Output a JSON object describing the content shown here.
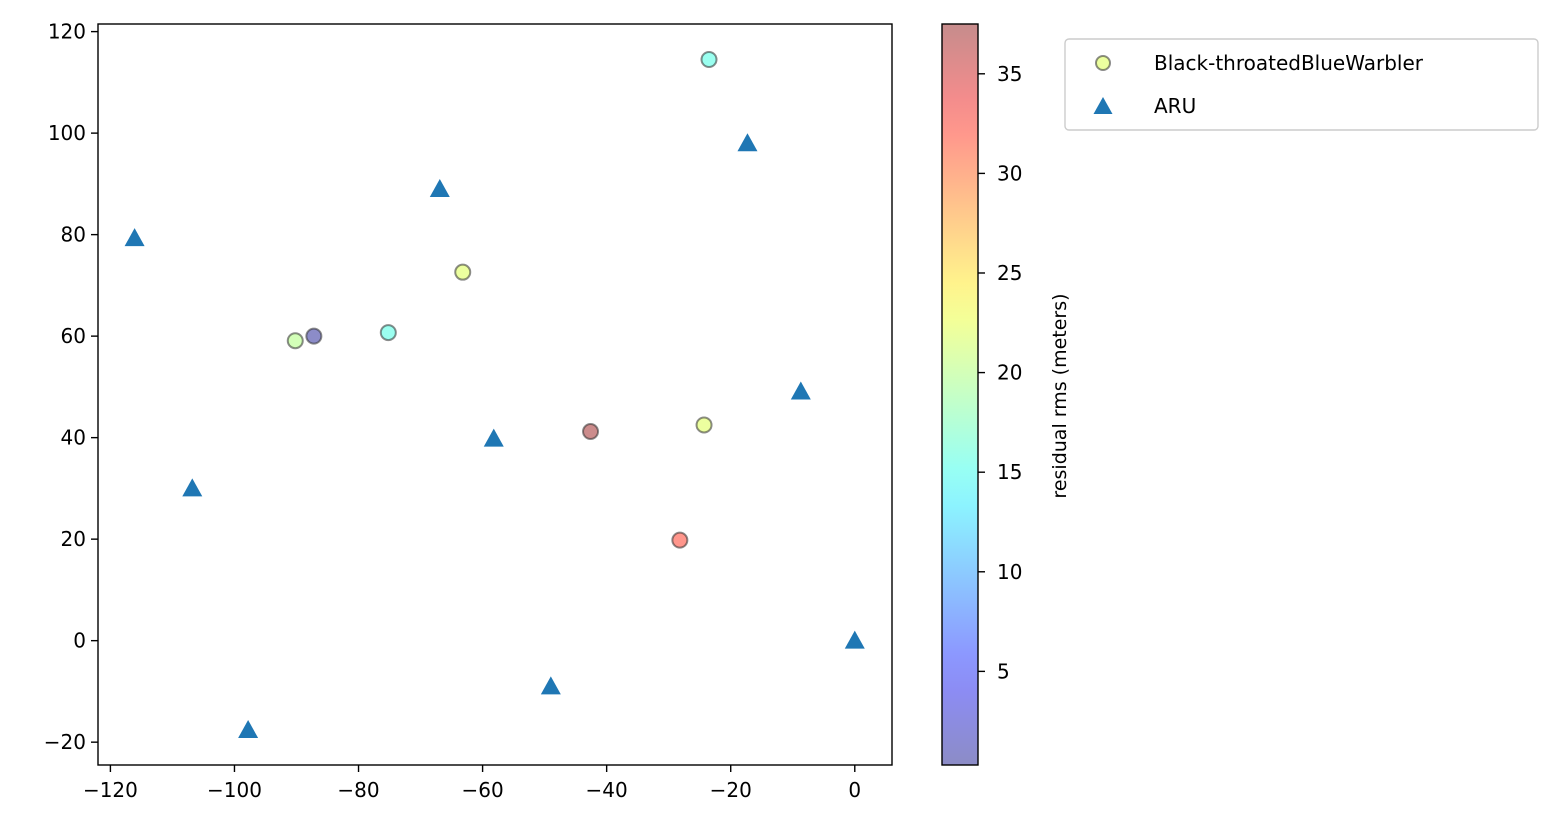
{
  "chart_data": {
    "type": "scatter",
    "xlim": [
      -122,
      6
    ],
    "ylim": [
      -24.5,
      121.5
    ],
    "x_ticks": [
      -120,
      -100,
      -80,
      -60,
      -40,
      -20,
      0
    ],
    "y_ticks": [
      -20,
      0,
      20,
      40,
      60,
      80,
      100,
      120
    ],
    "grid": false,
    "legend_position": "outside-top-right",
    "series": [
      {
        "name": "Black-throatedBlueWarbler",
        "marker": "circle",
        "alpha": 0.45,
        "edge_color": "#2d2d2d",
        "points": [
          {
            "x": -23.5,
            "y": 114.5,
            "c": 15.5
          },
          {
            "x": -63.2,
            "y": 72.6,
            "c": 22.0
          },
          {
            "x": -75.2,
            "y": 60.7,
            "c": 15.5
          },
          {
            "x": -90.2,
            "y": 59.1,
            "c": 20.0
          },
          {
            "x": -87.2,
            "y": 60.0,
            "c": 0.5
          },
          {
            "x": -42.6,
            "y": 41.2,
            "c": 37.0
          },
          {
            "x": -24.3,
            "y": 42.5,
            "c": 22.0
          },
          {
            "x": -28.2,
            "y": 19.8,
            "c": 32.0
          }
        ]
      },
      {
        "name": "ARU",
        "marker": "triangle",
        "color": "#1f77b4",
        "points": [
          {
            "x": -116.1,
            "y": 79.3
          },
          {
            "x": -106.8,
            "y": 30.0
          },
          {
            "x": -97.8,
            "y": -17.6
          },
          {
            "x": -66.9,
            "y": 89.0
          },
          {
            "x": -58.2,
            "y": 39.8
          },
          {
            "x": -49.0,
            "y": -9.0
          },
          {
            "x": -17.3,
            "y": 98.0
          },
          {
            "x": -8.7,
            "y": 49.1
          },
          {
            "x": 0.0,
            "y": 0.0
          }
        ]
      }
    ],
    "colorbar": {
      "label": "residual rms (meters)",
      "cmap": "jet",
      "alpha": 0.45,
      "range": [
        0.3,
        37.5
      ],
      "ticks": [
        5,
        10,
        15,
        20,
        25,
        30,
        35
      ]
    }
  }
}
